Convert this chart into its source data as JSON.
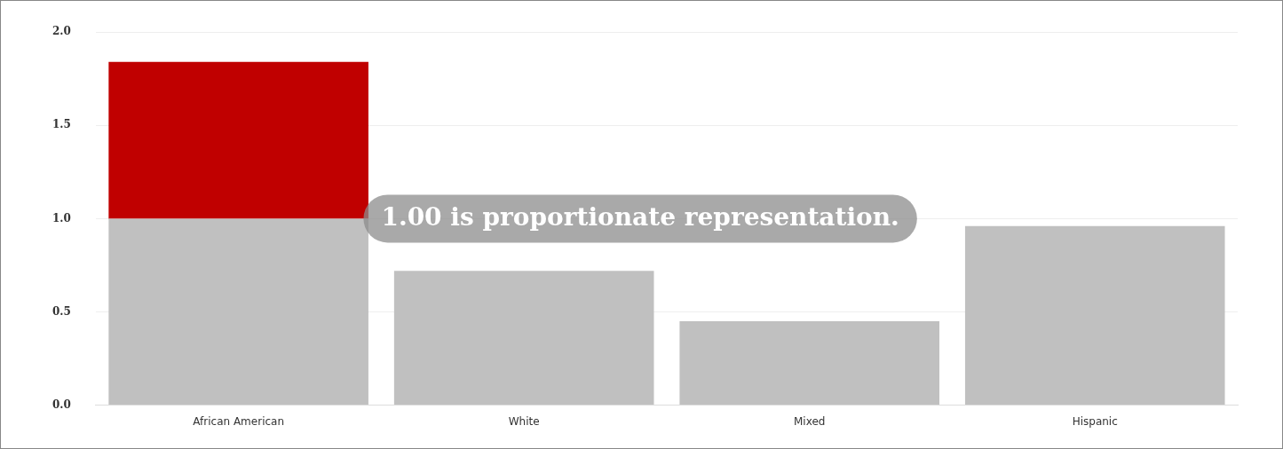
{
  "chart_data": {
    "type": "bar",
    "stacked": true,
    "categories": [
      "African American",
      "White",
      "Mixed",
      "Hispanic"
    ],
    "series": [
      {
        "color": "#c0c0c0",
        "values": [
          1.0,
          0.72,
          0.45,
          0.96
        ]
      },
      {
        "color": "#c00000",
        "values": [
          0.84,
          null,
          null,
          null
        ]
      }
    ],
    "ylim": [
      0,
      2
    ],
    "yticks": [
      {
        "value": 0,
        "label": "0.0"
      },
      {
        "value": 0.5,
        "label": "0.5"
      },
      {
        "value": 1,
        "label": "1.0"
      },
      {
        "value": 1.5,
        "label": "1.5"
      },
      {
        "value": 2,
        "label": "2.0"
      }
    ],
    "grid": "y",
    "legend": false,
    "annotations": [
      "1.00 is proportionate representation."
    ]
  }
}
